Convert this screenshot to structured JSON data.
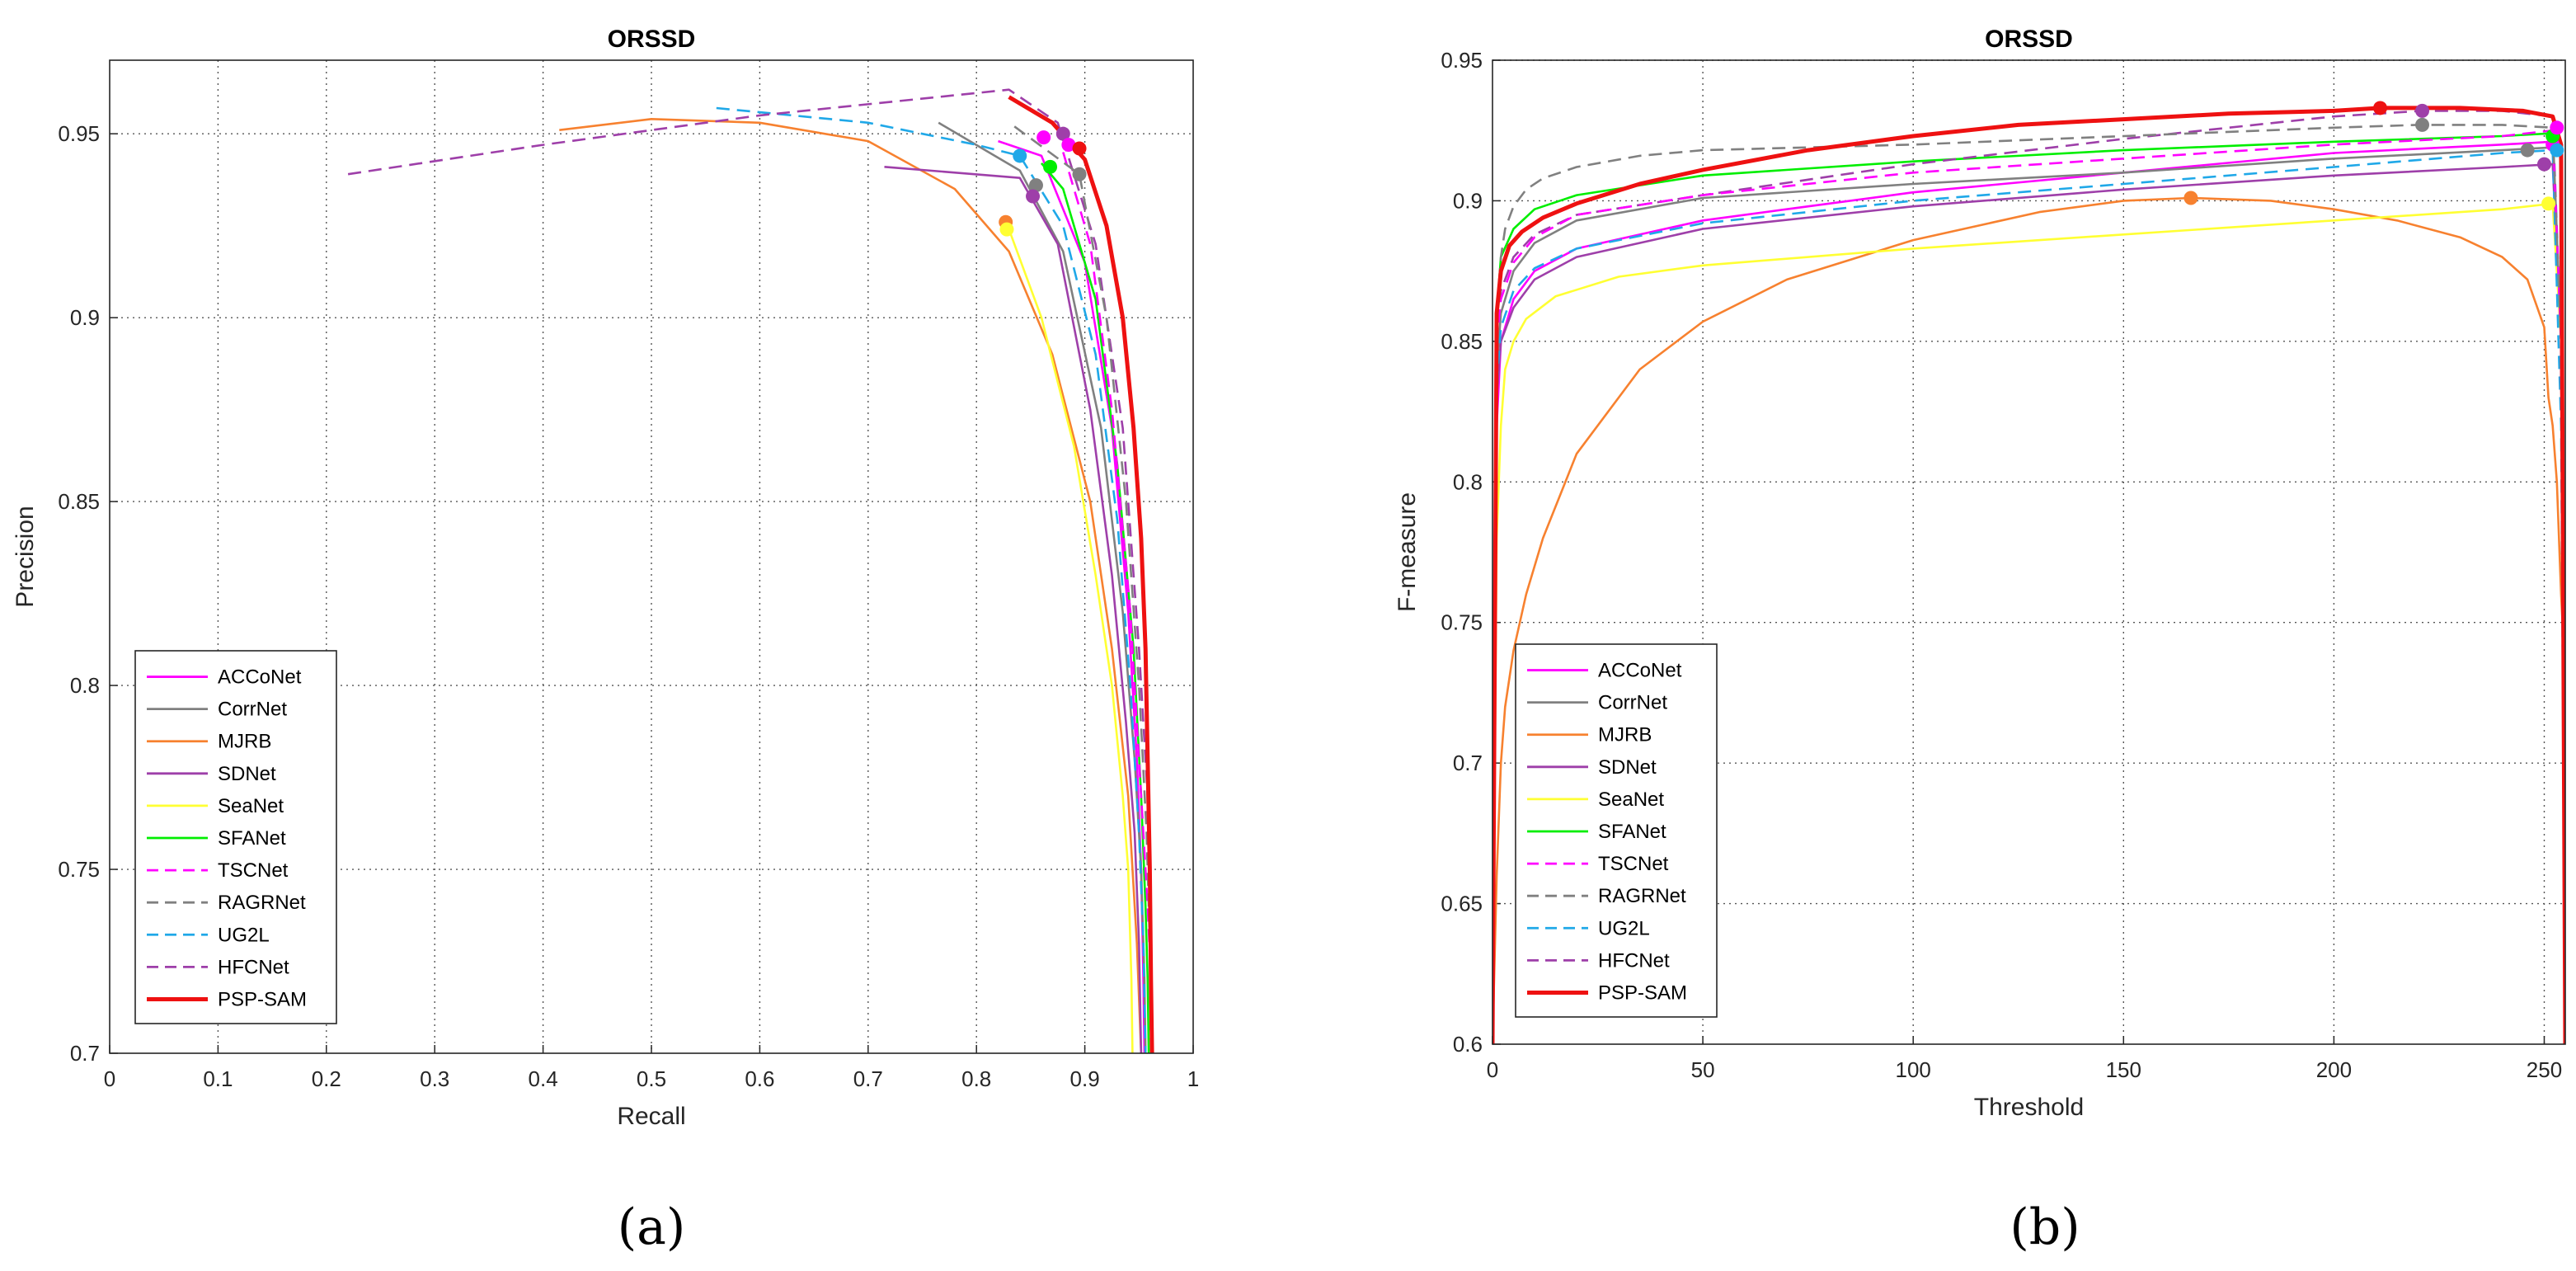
{
  "colors": {
    "ACCoNet": "#ff00ff",
    "CorrNet": "#808080",
    "MJRB": "#f7812f",
    "SDNet": "#9e3fa9",
    "SeaNet": "#ffff33",
    "SFANet": "#00ee00",
    "TSCNet": "#ff00ff",
    "RAGRNet": "#808080",
    "UG2L": "#1fa8e8",
    "HFCNet": "#9e3fa9",
    "PSP-SAM": "#ee1111"
  },
  "panel_labels": [
    "(a)",
    "(b)"
  ],
  "chart_data": [
    {
      "type": "line",
      "title": "ORSSD",
      "xlabel": "Recall",
      "ylabel": "Precision",
      "xlim": [
        0,
        1
      ],
      "ylim": [
        0.7,
        0.97
      ],
      "xticks": [
        "0",
        "0.1",
        "0.2",
        "0.3",
        "0.4",
        "0.5",
        "0.6",
        "0.7",
        "0.8",
        "0.9",
        "1"
      ],
      "yticks": [
        "0.7",
        "0.75",
        "0.8",
        "0.85",
        "0.9",
        "0.95"
      ],
      "grid": true,
      "legend": "bottom-left",
      "series": [
        {
          "name": "ACCoNet",
          "style": "solid",
          "x": [
            0.82,
            0.86,
            0.9,
            0.925,
            0.94,
            0.948,
            0.952,
            0.954,
            0.955
          ],
          "y": [
            0.948,
            0.944,
            0.915,
            0.87,
            0.82,
            0.78,
            0.75,
            0.72,
            0.7
          ],
          "marker": [
            0.862,
            0.949
          ]
        },
        {
          "name": "CorrNet",
          "style": "solid",
          "x": [
            0.765,
            0.84,
            0.88,
            0.915,
            0.935,
            0.946,
            0.952,
            0.955,
            0.956
          ],
          "y": [
            0.953,
            0.94,
            0.918,
            0.87,
            0.82,
            0.78,
            0.75,
            0.72,
            0.7
          ],
          "marker": [
            0.855,
            0.936
          ]
        },
        {
          "name": "MJRB",
          "style": "solid",
          "x": [
            0.415,
            0.5,
            0.6,
            0.7,
            0.78,
            0.83,
            0.87,
            0.905,
            0.925,
            0.94,
            0.948,
            0.952
          ],
          "y": [
            0.951,
            0.954,
            0.953,
            0.948,
            0.935,
            0.918,
            0.89,
            0.85,
            0.81,
            0.77,
            0.73,
            0.7
          ],
          "marker": [
            0.827,
            0.926
          ]
        },
        {
          "name": "SDNet",
          "style": "solid",
          "x": [
            0.715,
            0.84,
            0.875,
            0.905,
            0.925,
            0.938,
            0.946,
            0.95,
            0.952
          ],
          "y": [
            0.941,
            0.938,
            0.92,
            0.875,
            0.83,
            0.79,
            0.76,
            0.73,
            0.7
          ],
          "marker": [
            0.852,
            0.933
          ]
        },
        {
          "name": "SeaNet",
          "style": "solid",
          "x": [
            0.83,
            0.86,
            0.89,
            0.91,
            0.925,
            0.935,
            0.94,
            0.943,
            0.944
          ],
          "y": [
            0.924,
            0.9,
            0.865,
            0.83,
            0.8,
            0.77,
            0.75,
            0.72,
            0.7
          ],
          "marker": [
            0.828,
            0.924
          ]
        },
        {
          "name": "SFANet",
          "style": "solid",
          "x": [
            0.86,
            0.88,
            0.91,
            0.93,
            0.945,
            0.952,
            0.956,
            0.958,
            0.959
          ],
          "y": [
            0.942,
            0.935,
            0.905,
            0.86,
            0.81,
            0.77,
            0.74,
            0.72,
            0.7
          ],
          "marker": [
            0.868,
            0.941
          ]
        },
        {
          "name": "TSCNet",
          "style": "dashed",
          "x": [
            0.88,
            0.905,
            0.925,
            0.942,
            0.952,
            0.958,
            0.961,
            0.962
          ],
          "y": [
            0.945,
            0.92,
            0.875,
            0.82,
            0.77,
            0.74,
            0.72,
            0.7
          ],
          "marker": [
            0.885,
            0.947
          ]
        },
        {
          "name": "RAGRNet",
          "style": "dashed",
          "x": [
            0.835,
            0.895,
            0.92,
            0.938,
            0.95,
            0.957,
            0.96,
            0.961
          ],
          "y": [
            0.952,
            0.939,
            0.9,
            0.85,
            0.8,
            0.76,
            0.73,
            0.7
          ],
          "marker": [
            0.895,
            0.939
          ]
        },
        {
          "name": "UG2L",
          "style": "dashed",
          "x": [
            0.56,
            0.7,
            0.8,
            0.84,
            0.88,
            0.91,
            0.93,
            0.942,
            0.95,
            0.954,
            0.956
          ],
          "y": [
            0.957,
            0.953,
            0.947,
            0.944,
            0.925,
            0.89,
            0.845,
            0.8,
            0.76,
            0.73,
            0.7
          ],
          "marker": [
            0.84,
            0.944
          ]
        },
        {
          "name": "HFCNet",
          "style": "dashed",
          "x": [
            0.22,
            0.4,
            0.6,
            0.83,
            0.875,
            0.91,
            0.935,
            0.95,
            0.958,
            0.961,
            0.962
          ],
          "y": [
            0.939,
            0.947,
            0.955,
            0.962,
            0.953,
            0.92,
            0.87,
            0.81,
            0.77,
            0.73,
            0.7
          ],
          "marker": [
            0.88,
            0.95
          ]
        },
        {
          "name": "PSP-SAM",
          "style": "thick",
          "x": [
            0.83,
            0.87,
            0.9,
            0.92,
            0.935,
            0.945,
            0.952,
            0.956,
            0.958,
            0.96,
            0.961,
            0.962
          ],
          "y": [
            0.96,
            0.953,
            0.943,
            0.925,
            0.9,
            0.87,
            0.84,
            0.81,
            0.78,
            0.75,
            0.72,
            0.7
          ],
          "marker": [
            0.895,
            0.946
          ]
        }
      ]
    },
    {
      "type": "line",
      "title": "ORSSD",
      "xlabel": "Threshold",
      "ylabel": "F-measure",
      "xlim": [
        0,
        255
      ],
      "ylim": [
        0.6,
        0.95
      ],
      "xticks": [
        "0",
        "50",
        "100",
        "150",
        "200",
        "250"
      ],
      "yticks": [
        "0.6",
        "0.65",
        "0.7",
        "0.75",
        "0.8",
        "0.85",
        "0.9",
        "0.95"
      ],
      "grid": true,
      "legend": "bottom-left",
      "series": [
        {
          "name": "ACCoNet",
          "style": "solid",
          "x": [
            0,
            1,
            2,
            5,
            10,
            20,
            50,
            100,
            150,
            200,
            240,
            252,
            254,
            255
          ],
          "y": [
            0.6,
            0.82,
            0.85,
            0.865,
            0.875,
            0.883,
            0.893,
            0.903,
            0.91,
            0.917,
            0.92,
            0.921,
            0.85,
            0.6
          ],
          "marker": [
            252,
            0.92
          ]
        },
        {
          "name": "CorrNet",
          "style": "solid",
          "x": [
            0,
            1,
            2,
            5,
            10,
            20,
            50,
            100,
            150,
            200,
            240,
            252,
            254,
            255
          ],
          "y": [
            0.6,
            0.84,
            0.86,
            0.875,
            0.885,
            0.893,
            0.901,
            0.906,
            0.91,
            0.915,
            0.918,
            0.919,
            0.85,
            0.6
          ],
          "marker": [
            246,
            0.918
          ]
        },
        {
          "name": "MJRB",
          "style": "solid",
          "x": [
            0,
            1,
            2,
            3,
            5,
            8,
            12,
            20,
            35,
            50,
            70,
            100,
            130,
            150,
            166,
            185,
            200,
            215,
            230,
            240,
            246,
            250,
            251,
            252,
            253,
            254,
            255
          ],
          "y": [
            0.6,
            0.66,
            0.7,
            0.72,
            0.74,
            0.76,
            0.78,
            0.81,
            0.84,
            0.857,
            0.872,
            0.886,
            0.896,
            0.9,
            0.901,
            0.9,
            0.897,
            0.893,
            0.887,
            0.88,
            0.872,
            0.855,
            0.83,
            0.82,
            0.8,
            0.76,
            0.73
          ],
          "marker": [
            166,
            0.901
          ]
        },
        {
          "name": "SDNet",
          "style": "solid",
          "x": [
            0,
            1,
            2,
            5,
            10,
            20,
            50,
            100,
            150,
            200,
            240,
            252,
            254,
            255
          ],
          "y": [
            0.6,
            0.83,
            0.85,
            0.862,
            0.872,
            0.88,
            0.89,
            0.898,
            0.904,
            0.909,
            0.912,
            0.913,
            0.85,
            0.6
          ],
          "marker": [
            250,
            0.913
          ]
        },
        {
          "name": "SeaNet",
          "style": "solid",
          "x": [
            0,
            1,
            2,
            3,
            5,
            8,
            15,
            30,
            50,
            100,
            150,
            200,
            240,
            252,
            254,
            255
          ],
          "y": [
            0.6,
            0.78,
            0.82,
            0.84,
            0.85,
            0.858,
            0.866,
            0.873,
            0.877,
            0.883,
            0.888,
            0.893,
            0.897,
            0.899,
            0.85,
            0.6
          ],
          "marker": [
            251,
            0.899
          ]
        },
        {
          "name": "SFANet",
          "style": "solid",
          "x": [
            0,
            1,
            2,
            5,
            10,
            20,
            50,
            100,
            150,
            200,
            240,
            252,
            254,
            255
          ],
          "y": [
            0.6,
            0.86,
            0.88,
            0.89,
            0.897,
            0.902,
            0.909,
            0.914,
            0.918,
            0.921,
            0.923,
            0.924,
            0.85,
            0.6
          ],
          "marker": [
            252,
            0.923
          ]
        },
        {
          "name": "TSCNet",
          "style": "dashed",
          "x": [
            0,
            1,
            2,
            5,
            10,
            20,
            50,
            100,
            150,
            200,
            240,
            252,
            254,
            255
          ],
          "y": [
            0.6,
            0.85,
            0.865,
            0.878,
            0.887,
            0.895,
            0.902,
            0.91,
            0.915,
            0.92,
            0.923,
            0.925,
            0.85,
            0.6
          ],
          "marker": [
            253,
            0.926
          ]
        },
        {
          "name": "RAGRNet",
          "style": "dashed",
          "x": [
            0,
            1,
            2,
            3,
            5,
            8,
            12,
            20,
            35,
            50,
            100,
            150,
            200,
            220,
            240,
            252,
            254,
            255
          ],
          "y": [
            0.6,
            0.86,
            0.88,
            0.89,
            0.898,
            0.904,
            0.908,
            0.912,
            0.916,
            0.918,
            0.92,
            0.923,
            0.926,
            0.927,
            0.927,
            0.926,
            0.85,
            0.6
          ],
          "marker": [
            221,
            0.927
          ]
        },
        {
          "name": "UG2L",
          "style": "dashed",
          "x": [
            0,
            1,
            2,
            5,
            10,
            20,
            50,
            100,
            150,
            200,
            240,
            252,
            254,
            255
          ],
          "y": [
            0.6,
            0.835,
            0.855,
            0.868,
            0.876,
            0.883,
            0.892,
            0.9,
            0.906,
            0.912,
            0.917,
            0.918,
            0.82,
            0.6
          ],
          "marker": [
            253,
            0.918
          ]
        },
        {
          "name": "HFCNet",
          "style": "dashed",
          "x": [
            0,
            1,
            2,
            5,
            10,
            20,
            50,
            100,
            150,
            200,
            221,
            240,
            252,
            254,
            255
          ],
          "y": [
            0.6,
            0.85,
            0.868,
            0.88,
            0.888,
            0.895,
            0.902,
            0.913,
            0.922,
            0.93,
            0.932,
            0.932,
            0.93,
            0.85,
            0.6
          ],
          "marker": [
            221,
            0.932
          ]
        },
        {
          "name": "PSP-SAM",
          "style": "thick",
          "x": [
            0,
            1,
            2,
            4,
            7,
            12,
            20,
            35,
            50,
            75,
            100,
            125,
            150,
            175,
            200,
            211,
            230,
            245,
            252,
            254,
            255
          ],
          "y": [
            0.6,
            0.86,
            0.875,
            0.884,
            0.889,
            0.894,
            0.899,
            0.906,
            0.911,
            0.918,
            0.923,
            0.927,
            0.929,
            0.931,
            0.932,
            0.933,
            0.933,
            0.932,
            0.93,
            0.92,
            0.6
          ],
          "marker": [
            211,
            0.933
          ]
        }
      ]
    }
  ]
}
